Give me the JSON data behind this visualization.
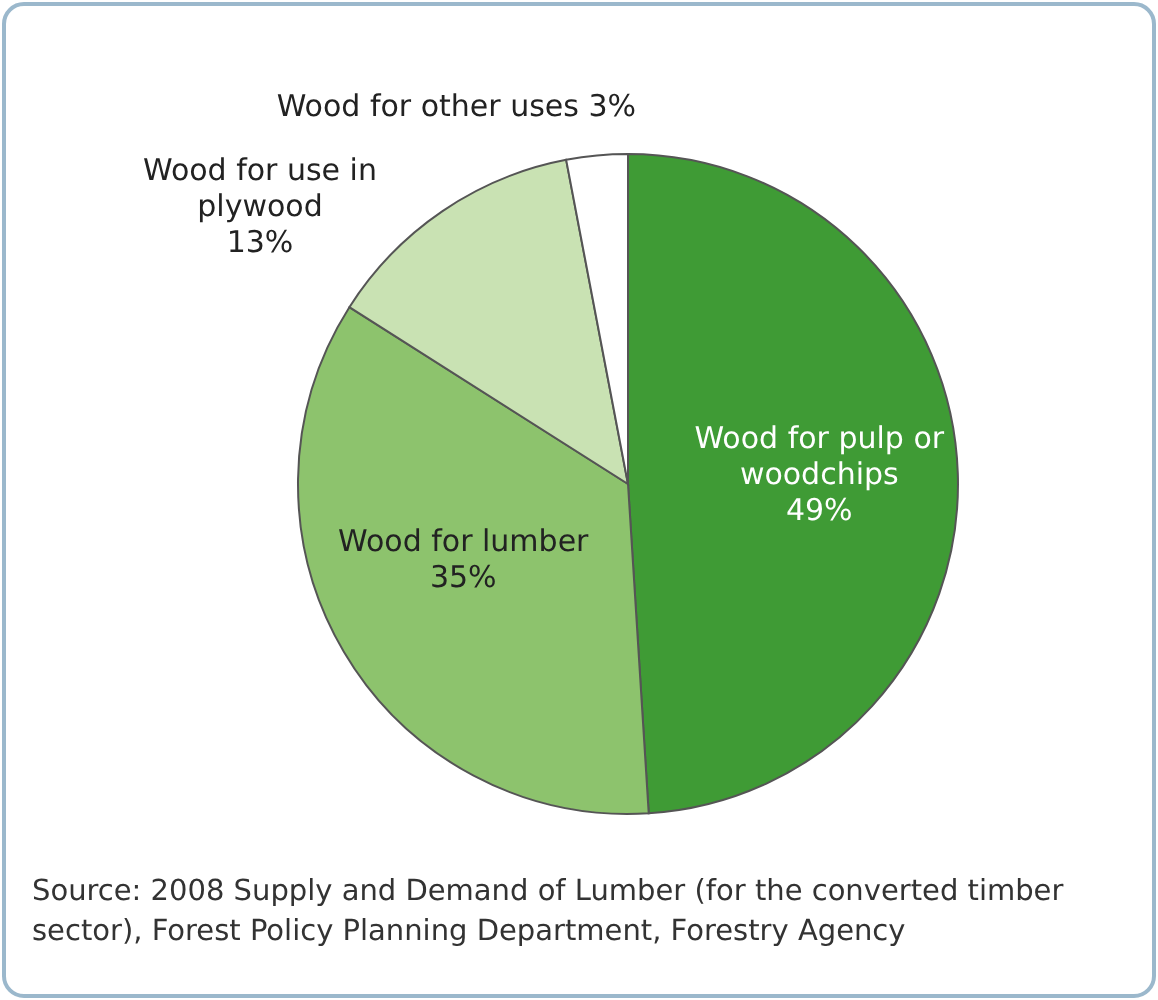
{
  "chart_data": {
    "type": "pie",
    "categories": [
      "Wood for pulp or woodchips",
      "Wood for lumber",
      "Wood for use in plywood",
      "Wood for other uses"
    ],
    "values": [
      49,
      35,
      13,
      3
    ],
    "value_labels": [
      "49%",
      "35%",
      "13%",
      "3%"
    ],
    "colors": [
      "#3f9b35",
      "#8dc36d",
      "#c9e2b3",
      "#ffffff"
    ],
    "annotations": [
      "Source: 2008 Supply and Demand of Lumber (for the converted timber sector), Forest Policy Planning Department, Forestry Agency"
    ]
  }
}
